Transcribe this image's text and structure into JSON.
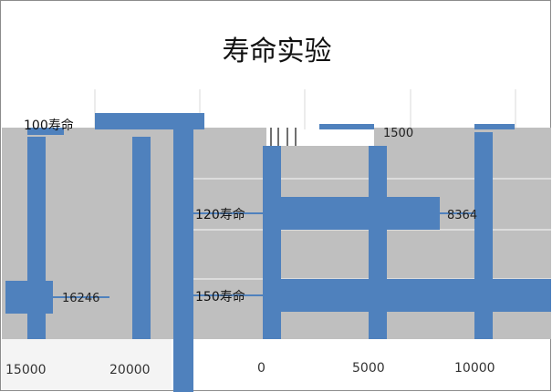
{
  "chart_data": {
    "type": "bar",
    "orientation": "horizontal",
    "title": "寿命实验",
    "categories": [
      "100寿命",
      "120寿命",
      "150寿命"
    ],
    "series": [
      {
        "values": [
          16246,
          8364,
          1500
        ]
      }
    ],
    "ticks": [
      "15000",
      "20000",
      "0",
      "5000",
      "10000"
    ],
    "colors": {
      "bar": "#4f81bd",
      "glitch": "#bfbfbf",
      "grid": "#d9d9d9"
    }
  }
}
